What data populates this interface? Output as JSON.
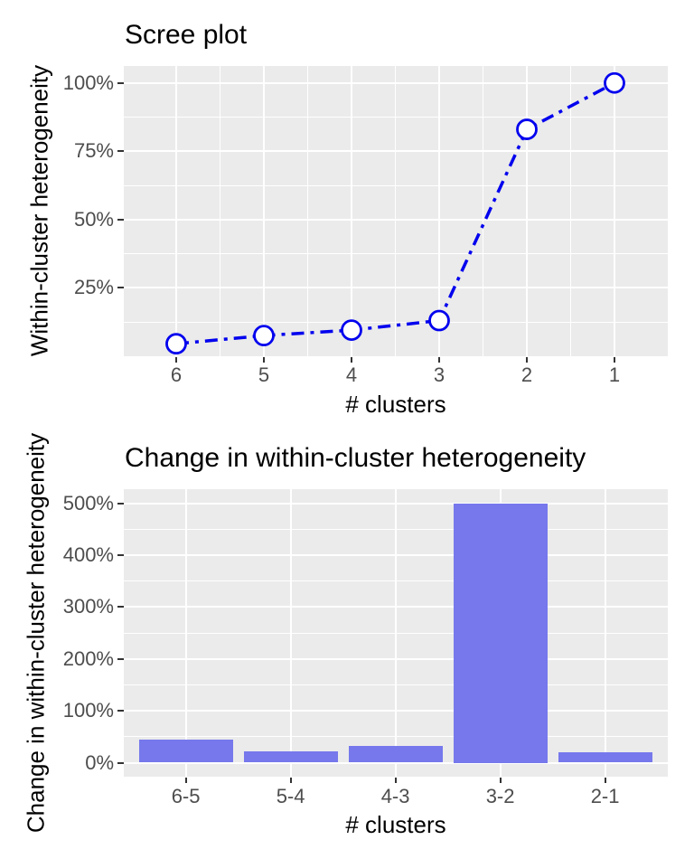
{
  "page": {
    "background": "#FFFFFF"
  },
  "colors": {
    "panel_background": "#EBEBEB",
    "gridline": "#FFFFFF",
    "tick_label": "#4D4D4D",
    "tick_mark": "#333333",
    "line_blue": "#0000EE",
    "marker_fill": "#FFFFFF",
    "bar_fill": "#7678EC",
    "text": "#000000"
  },
  "chart_data": [
    {
      "type": "line",
      "title": "Scree plot",
      "xlabel": "# clusters",
      "ylabel": "Within-cluster heterogeneity",
      "x": [
        6,
        5,
        4,
        3,
        2,
        1
      ],
      "x_tick_labels": [
        "6",
        "5",
        "4",
        "3",
        "2",
        "1"
      ],
      "values": [
        4.5,
        7.5,
        9.5,
        13,
        83,
        100
      ],
      "y_ticks": [
        25,
        50,
        75,
        100
      ],
      "y_tick_labels": [
        "25%",
        "50%",
        "75%",
        "100%"
      ],
      "y_minor_ticks": [
        12.5,
        37.5,
        62.5,
        87.5
      ],
      "ylim": [
        0,
        106.2
      ],
      "x_axis_reversed": true,
      "line_style": "dash-dot",
      "marker": "open-circle",
      "grid": "on",
      "legend": "none"
    },
    {
      "type": "bar",
      "title": "Change in within-cluster heterogeneity",
      "xlabel": "# clusters",
      "ylabel": "Change in within-cluster heterogeneity",
      "categories": [
        "6-5",
        "5-4",
        "4-3",
        "3-2",
        "2-1"
      ],
      "values": [
        45,
        22,
        33,
        500,
        20
      ],
      "y_ticks": [
        0,
        100,
        200,
        300,
        400,
        500
      ],
      "y_tick_labels": [
        "0%",
        "100%",
        "200%",
        "300%",
        "400%",
        "500%"
      ],
      "y_minor_ticks": [
        50,
        150,
        250,
        350,
        450
      ],
      "ylim": [
        -25,
        525
      ],
      "grid": "on",
      "legend": "none"
    }
  ]
}
